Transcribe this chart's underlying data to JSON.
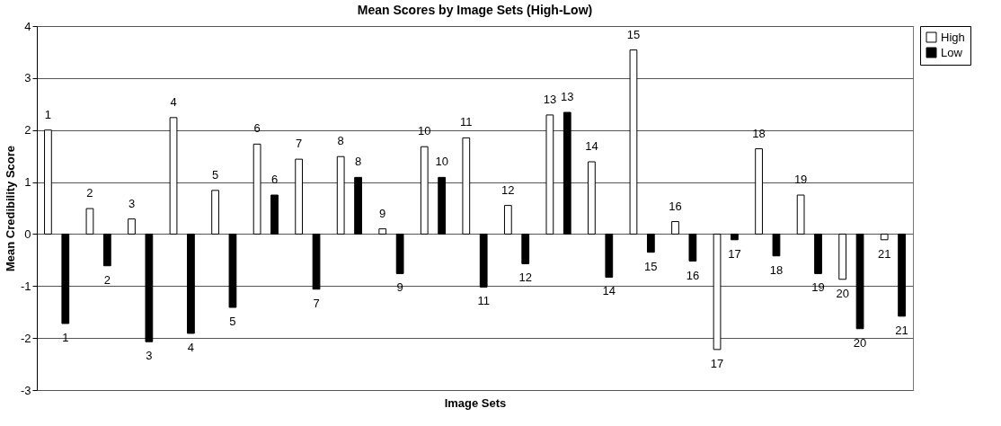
{
  "chart_data": {
    "type": "bar",
    "title": "Mean Scores by Image Sets (High-Low)",
    "xlabel": "Image Sets",
    "ylabel": "Mean Credibility Score",
    "categories": [
      "1",
      "2",
      "3",
      "4",
      "5",
      "6",
      "7",
      "8",
      "9",
      "10",
      "11",
      "12",
      "13",
      "14",
      "15",
      "16",
      "17",
      "18",
      "19",
      "20",
      "21"
    ],
    "tick_labels": "y",
    "series": [
      {
        "name": "High",
        "color": "#ffffff",
        "values": [
          2.0,
          0.49,
          0.29,
          2.24,
          0.84,
          1.73,
          1.44,
          1.49,
          0.1,
          1.68,
          1.85,
          0.55,
          2.29,
          1.39,
          3.54,
          0.24,
          -2.22,
          1.64,
          0.75,
          -0.87,
          -0.11
        ]
      },
      {
        "name": "Low",
        "color": "#000000",
        "values": [
          -1.72,
          -0.61,
          -2.07,
          -1.91,
          -1.41,
          0.75,
          -1.06,
          1.09,
          -0.76,
          1.09,
          -1.02,
          -0.57,
          2.34,
          -0.83,
          -0.35,
          -0.52,
          -0.11,
          -0.42,
          -0.76,
          -1.82,
          -1.58
        ]
      }
    ],
    "ylim": [
      -3,
      4
    ],
    "yticks": [
      -3,
      -2,
      -1,
      0,
      1,
      2,
      3,
      4
    ],
    "grid": "y",
    "legend": "right"
  }
}
